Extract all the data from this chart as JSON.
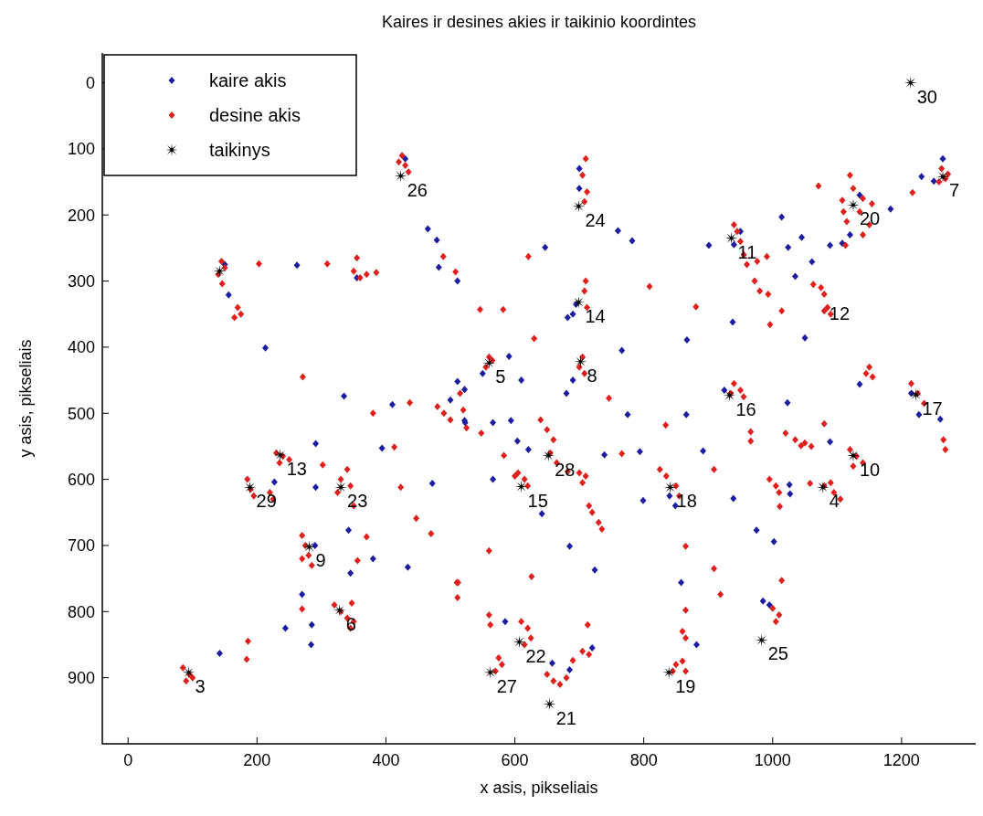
{
  "chart_data": {
    "type": "scatter",
    "title": "Kaires ir desines akies ir taikinio koordintes",
    "xlabel": "x asis, pikseliais",
    "ylabel": "y asis, pikseliais",
    "xlim": [
      -40,
      1315
    ],
    "ylim": [
      1000,
      -45
    ],
    "xticks": [
      0,
      200,
      400,
      600,
      800,
      1000,
      1200
    ],
    "yticks": [
      0,
      100,
      200,
      300,
      400,
      500,
      600,
      700,
      800,
      900
    ],
    "grid": false,
    "legend": "top left",
    "series": [
      {
        "name": "kaire akis",
        "color": "#1c1ca0",
        "marker": "diamond",
        "x": [
          262,
          156,
          213,
          465,
          479,
          482,
          511,
          335,
          647,
          760,
          782,
          901,
          1014,
          1045,
          1024,
          1061,
          1035,
          938,
          867,
          1050,
          766,
          591,
          682,
          511,
          610,
          1231,
          1250,
          1183,
          1108,
          1089,
          1264,
          291,
          227,
          291,
          342,
          345,
          380,
          434,
          270,
          285,
          244,
          284,
          142,
          472,
          394,
          410,
          522,
          522,
          566,
          523,
          594,
          604,
          621,
          566,
          642,
          739,
          794,
          775,
          866,
          892,
          799,
          849,
          685,
          724,
          858,
          882,
          939,
          975,
          1002,
          985,
          685,
          658,
          585,
          1023,
          1089,
          1026,
          1027,
          1135,
          1227,
          1260,
          430,
          700,
          700,
          695,
          690,
          150,
          355,
          1135,
          1120,
          950,
          940,
          550,
          690,
          680,
          500,
          925,
          1215,
          840,
          290,
          720,
          995
        ],
        "values": [
          276,
          321,
          401,
          221,
          238,
          279,
          300,
          474,
          249,
          224,
          239,
          246,
          203,
          234,
          249,
          271,
          293,
          362,
          389,
          386,
          405,
          414,
          355,
          452,
          450,
          142,
          149,
          191,
          243,
          246,
          115,
          546,
          604,
          612,
          677,
          742,
          720,
          733,
          774,
          820,
          825,
          850,
          863,
          606,
          553,
          487,
          464,
          511,
          514,
          514,
          511,
          542,
          555,
          600,
          652,
          563,
          558,
          502,
          502,
          557,
          632,
          640,
          701,
          737,
          756,
          850,
          629,
          677,
          694,
          784,
          888,
          878,
          815,
          484,
          543,
          608,
          622,
          456,
          502,
          509,
          115,
          130,
          160,
          335,
          350,
          275,
          295,
          170,
          230,
          225,
          245,
          440,
          450,
          470,
          480,
          465,
          470,
          625,
          700,
          855,
          790
        ]
      },
      {
        "name": "desine akis",
        "color": "#e0201c",
        "marker": "diamond",
        "x": [
          203,
          309,
          385,
          271,
          146,
          489,
          508,
          621,
          809,
          582,
          546,
          630,
          881,
          991,
          993,
          976,
          996,
          1014,
          1080,
          1063,
          1071,
          1217,
          1154,
          1113,
          1108,
          425,
          430,
          420,
          435,
          710,
          705,
          712,
          708,
          710,
          708,
          712,
          145,
          150,
          140,
          170,
          175,
          165,
          355,
          350,
          360,
          370,
          1120,
          1125,
          1140,
          1135,
          1110,
          1115,
          1150,
          1140,
          1262,
          1268,
          1258,
          1272,
          940,
          945,
          950,
          955,
          960,
          972,
          980,
          1080,
          1085,
          1090,
          1075,
          560,
          555,
          565,
          705,
          700,
          708,
          480,
          490,
          500,
          520,
          515,
          940,
          950,
          935,
          955,
          1150,
          1155,
          1145,
          1215,
          1225,
          1235,
          1265,
          1268,
          1020,
          1035,
          1050,
          1060,
          1120,
          1130,
          1140,
          1125,
          1080,
          1095,
          1105,
          1090,
          995,
          1005,
          1010,
          825,
          835,
          850,
          855,
          640,
          650,
          660,
          655,
          665,
          700,
          705,
          710,
          605,
          615,
          620,
          600,
          715,
          720,
          730,
          735,
          230,
          240,
          235,
          250,
          185,
          190,
          195,
          220,
          225,
          330,
          340,
          345,
          325,
          350,
          270,
          275,
          280,
          270,
          285,
          320,
          330,
          340,
          350,
          345,
          85,
          95,
          100,
          90,
          610,
          620,
          625,
          615,
          575,
          580,
          570,
          560,
          562,
          650,
          660,
          670,
          680,
          705,
          715,
          850,
          860,
          845,
          865,
          860,
          865,
          1000,
          1010,
          1005,
          380,
          437,
          413,
          423,
          447,
          470,
          370,
          356,
          302,
          270,
          186,
          184,
          347,
          510,
          511,
          746,
          834,
          766,
          909,
          560,
          626,
          865,
          909,
          919,
          1011,
          1014,
          865,
          713,
          690,
          966,
          966,
          1080,
          1044,
          1058,
          525,
          548,
          583,
          682,
          512
        ],
        "values": [
          274,
          274,
          287,
          445,
          304,
          263,
          286,
          263,
          308,
          343,
          343,
          387,
          339,
          263,
          320,
          270,
          366,
          345,
          345,
          305,
          156,
          166,
          183,
          246,
          178,
          110,
          125,
          120,
          135,
          115,
          140,
          165,
          180,
          300,
          315,
          340,
          270,
          280,
          290,
          340,
          350,
          355,
          265,
          285,
          295,
          290,
          140,
          160,
          175,
          195,
          195,
          210,
          215,
          230,
          130,
          145,
          150,
          138,
          215,
          225,
          240,
          260,
          275,
          300,
          315,
          320,
          340,
          350,
          310,
          415,
          430,
          420,
          415,
          430,
          440,
          490,
          500,
          510,
          495,
          470,
          455,
          465,
          470,
          475,
          430,
          445,
          440,
          455,
          470,
          485,
          540,
          555,
          530,
          540,
          545,
          550,
          555,
          565,
          575,
          580,
          610,
          620,
          630,
          605,
          600,
          610,
          620,
          585,
          595,
          610,
          625,
          510,
          525,
          540,
          560,
          575,
          590,
          605,
          595,
          590,
          600,
          610,
          595,
          640,
          650,
          665,
          675,
          560,
          565,
          575,
          570,
          600,
          615,
          625,
          620,
          630,
          600,
          585,
          610,
          620,
          640,
          685,
          700,
          715,
          720,
          730,
          790,
          800,
          810,
          815,
          825,
          885,
          895,
          900,
          905,
          815,
          825,
          840,
          850,
          870,
          880,
          890,
          805,
          820,
          895,
          905,
          910,
          900,
          860,
          865,
          880,
          875,
          890,
          890,
          830,
          840,
          795,
          805,
          815,
          500,
          484,
          551,
          612,
          659,
          682,
          687,
          723,
          578,
          796,
          845,
          872,
          787,
          756,
          779,
          477,
          518,
          561,
          585,
          708,
          747,
          701,
          735,
          774,
          641,
          753,
          798,
          820,
          874,
          528,
          542,
          516,
          549,
          606,
          522,
          530,
          564,
          588,
          756
        ]
      },
      {
        "name": "taikinys",
        "color": "#000000",
        "marker": "star",
        "x": [
          936,
          94,
          1078,
          560,
          328,
          1264,
          702,
          281,
          1125,
          236,
          699,
          610,
          933,
          1222,
          841,
          839,
          1125,
          654,
          607,
          330,
          699,
          983,
          423,
          562,
          652,
          189,
          1214,
          142
        ],
        "values": [
          235,
          892,
          612,
          424,
          798,
          142,
          422,
          702,
          564,
          563,
          332,
          611,
          473,
          472,
          612,
          892,
          185,
          940,
          846,
          612,
          187,
          843,
          141,
          892,
          564,
          612,
          0,
          285
        ]
      }
    ],
    "annotations": [
      {
        "text": "11",
        "x": 936,
        "y": 235
      },
      {
        "text": "3",
        "x": 94,
        "y": 892
      },
      {
        "text": "4",
        "x": 1078,
        "y": 612
      },
      {
        "text": "5",
        "x": 560,
        "y": 424
      },
      {
        "text": "6",
        "x": 328,
        "y": 798
      },
      {
        "text": "7",
        "x": 1264,
        "y": 142
      },
      {
        "text": "8",
        "x": 702,
        "y": 422
      },
      {
        "text": "9",
        "x": 281,
        "y": 702
      },
      {
        "text": "10",
        "x": 1125,
        "y": 564
      },
      {
        "text": "12",
        "x": 1078,
        "y": 328
      },
      {
        "text": "13",
        "x": 236,
        "y": 563
      },
      {
        "text": "14",
        "x": 699,
        "y": 332
      },
      {
        "text": "15",
        "x": 610,
        "y": 611
      },
      {
        "text": "16",
        "x": 933,
        "y": 473
      },
      {
        "text": "17",
        "x": 1222,
        "y": 472
      },
      {
        "text": "18",
        "x": 841,
        "y": 612
      },
      {
        "text": "19",
        "x": 839,
        "y": 892
      },
      {
        "text": "20",
        "x": 1125,
        "y": 185
      },
      {
        "text": "21",
        "x": 654,
        "y": 940
      },
      {
        "text": "22",
        "x": 607,
        "y": 846
      },
      {
        "text": "23",
        "x": 330,
        "y": 612
      },
      {
        "text": "24",
        "x": 699,
        "y": 187
      },
      {
        "text": "25",
        "x": 983,
        "y": 843
      },
      {
        "text": "26",
        "x": 423,
        "y": 141
      },
      {
        "text": "27",
        "x": 562,
        "y": 892
      },
      {
        "text": "28",
        "x": 652,
        "y": 564
      },
      {
        "text": "29",
        "x": 189,
        "y": 612
      },
      {
        "text": "30",
        "x": 1214,
        "y": 0
      }
    ]
  }
}
